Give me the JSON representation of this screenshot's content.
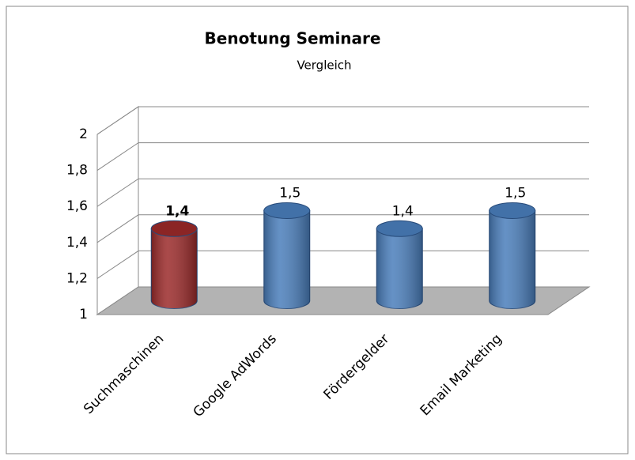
{
  "chart_data": {
    "type": "bar3d",
    "title": "Benotung Seminare",
    "subtitle": "Vergleich",
    "categories": [
      "Suchmaschinen",
      "Google AdWords",
      "Fördergelder",
      "Email Marketing"
    ],
    "values": [
      1.4,
      1.5,
      1.4,
      1.5
    ],
    "value_labels": [
      "1,4",
      "1,5",
      "1,4",
      "1,5"
    ],
    "colors": [
      "#9b2a2a",
      "#4a7ebb",
      "#4a7ebb",
      "#4a7ebb"
    ],
    "ylim": [
      1,
      2
    ],
    "yticks": [
      1,
      {
        "value": 1.2,
        "label": "1,2"
      },
      {
        "value": 1.4,
        "label": "1,4"
      },
      {
        "value": 1.6,
        "label": "1,6"
      },
      {
        "value": 1.8,
        "label": "1,8"
      },
      2
    ],
    "grid": true
  }
}
